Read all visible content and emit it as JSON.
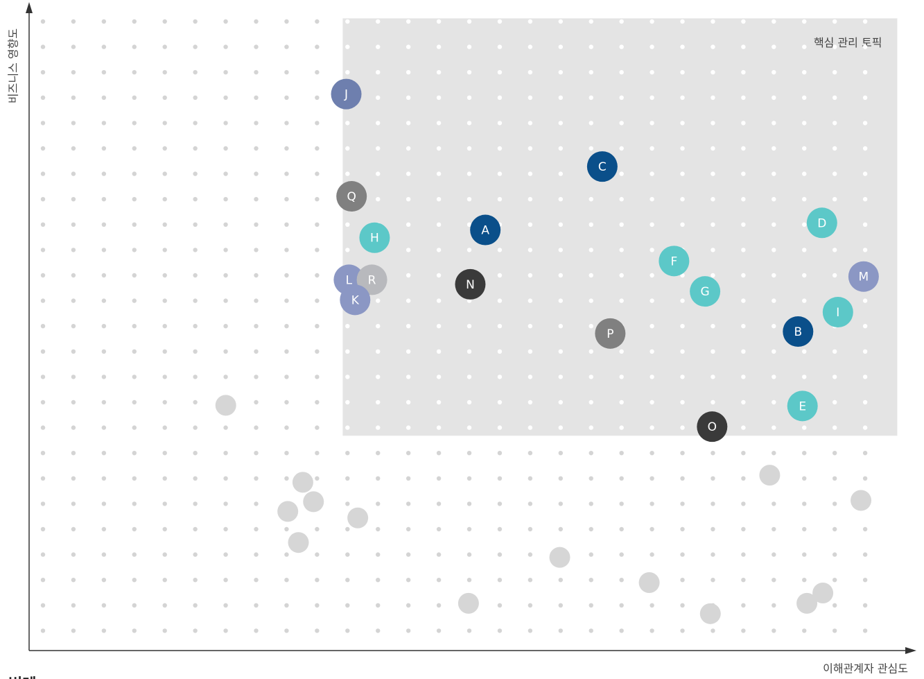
{
  "chart_data": {
    "type": "scatter",
    "x_label": "이해관계자 관심도",
    "y_label": "비즈니스 영향도",
    "xlim": [
      0,
      100
    ],
    "ylim": [
      0,
      100
    ],
    "region": {
      "label": "핵심 관리 토픽",
      "x": [
        35.4,
        98.0
      ],
      "y": [
        33.2,
        97.7
      ],
      "color": "#e4e4e4"
    },
    "legend_title": "범례",
    "points": [
      {
        "label": "J",
        "x": 35.8,
        "y": 86.0,
        "color": "#6e7fae"
      },
      {
        "label": "C",
        "x": 64.7,
        "y": 74.8,
        "color": "#0a4f8a"
      },
      {
        "label": "Q",
        "x": 36.4,
        "y": 70.2,
        "color": "#808080"
      },
      {
        "label": "H",
        "x": 39.0,
        "y": 63.8,
        "color": "#5cc8c8"
      },
      {
        "label": "A",
        "x": 51.5,
        "y": 65.0,
        "color": "#0a4f8a"
      },
      {
        "label": "D",
        "x": 89.5,
        "y": 66.1,
        "color": "#5cc8c8"
      },
      {
        "label": "F",
        "x": 72.8,
        "y": 60.2,
        "color": "#5cc8c8"
      },
      {
        "label": "M",
        "x": 94.2,
        "y": 57.8,
        "color": "#8b97c4"
      },
      {
        "label": "L",
        "x": 36.1,
        "y": 57.3,
        "color": "#8b97c4"
      },
      {
        "label": "R",
        "x": 38.7,
        "y": 57.3,
        "color": "#b8b9bd"
      },
      {
        "label": "K",
        "x": 36.8,
        "y": 54.2,
        "color": "#8b97c4"
      },
      {
        "label": "N",
        "x": 49.8,
        "y": 56.6,
        "color": "#3a3a3a"
      },
      {
        "label": "G",
        "x": 76.3,
        "y": 55.5,
        "color": "#5cc8c8"
      },
      {
        "label": "I",
        "x": 91.3,
        "y": 52.3,
        "color": "#5cc8c8"
      },
      {
        "label": "B",
        "x": 86.8,
        "y": 49.3,
        "color": "#0a4f8a"
      },
      {
        "label": "P",
        "x": 65.6,
        "y": 49.0,
        "color": "#808080"
      },
      {
        "label": "E",
        "x": 87.3,
        "y": 37.8,
        "color": "#5cc8c8"
      },
      {
        "label": "O",
        "x": 77.1,
        "y": 34.6,
        "color": "#3a3a3a"
      },
      {
        "x": 22.2,
        "y": 37.9,
        "color": "#d6d6d6"
      },
      {
        "x": 30.9,
        "y": 26.0,
        "color": "#d6d6d6"
      },
      {
        "x": 32.1,
        "y": 23.0,
        "color": "#d6d6d6"
      },
      {
        "x": 29.2,
        "y": 21.5,
        "color": "#d6d6d6"
      },
      {
        "x": 37.1,
        "y": 20.5,
        "color": "#d6d6d6"
      },
      {
        "x": 30.4,
        "y": 16.7,
        "color": "#d6d6d6"
      },
      {
        "x": 59.9,
        "y": 14.4,
        "color": "#d6d6d6"
      },
      {
        "x": 49.6,
        "y": 7.3,
        "color": "#d6d6d6"
      },
      {
        "x": 70.0,
        "y": 10.5,
        "color": "#d6d6d6"
      },
      {
        "x": 76.9,
        "y": 5.7,
        "color": "#d6d6d6"
      },
      {
        "x": 83.6,
        "y": 27.1,
        "color": "#d6d6d6"
      },
      {
        "x": 93.9,
        "y": 23.2,
        "color": "#d6d6d6"
      },
      {
        "x": 87.8,
        "y": 7.3,
        "color": "#d6d6d6"
      },
      {
        "x": 89.6,
        "y": 8.9,
        "color": "#d6d6d6"
      }
    ]
  }
}
